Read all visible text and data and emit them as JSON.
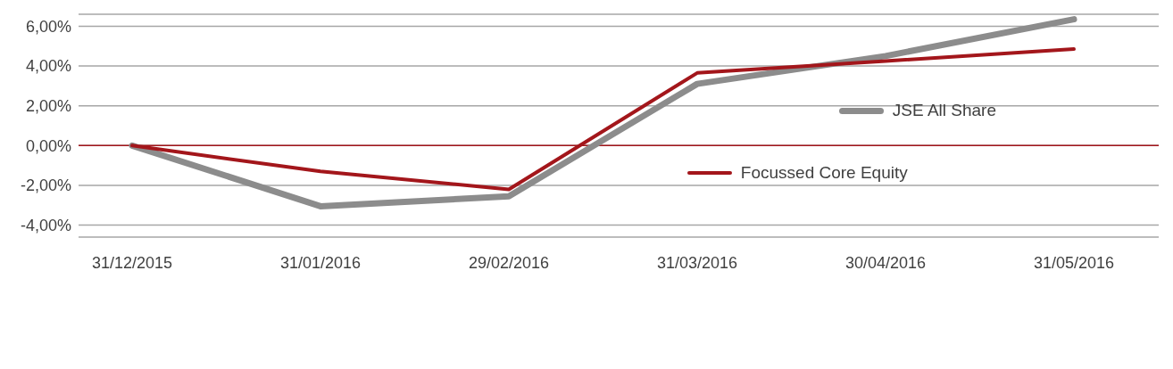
{
  "chart_data": {
    "type": "line",
    "categories": [
      "31/12/2015",
      "31/01/2016",
      "29/02/2016",
      "31/03/2016",
      "30/04/2016",
      "31/05/2016"
    ],
    "series": [
      {
        "name": "JSE All Share",
        "color": "#8c8c8c",
        "values": [
          0,
          -3.05,
          -2.55,
          3.1,
          4.5,
          6.35
        ]
      },
      {
        "name": "Focussed Core Equity",
        "color": "#a3161b",
        "values": [
          0,
          -1.3,
          -2.2,
          3.65,
          4.25,
          4.85
        ]
      }
    ],
    "ylim": [
      -4.6,
      6.6
    ],
    "yticks": [
      {
        "value": -4,
        "label": "-4,00%"
      },
      {
        "value": -2,
        "label": "-2,00%"
      },
      {
        "value": 0,
        "label": "0,00%"
      },
      {
        "value": 2,
        "label": "2,00%"
      },
      {
        "value": 4,
        "label": "4,00%"
      },
      {
        "value": 6,
        "label": "6,00%"
      }
    ],
    "grid": "y",
    "ref_lines": [
      {
        "axis": "y",
        "value": 0,
        "color": "#a3161b"
      }
    ],
    "legend": "right",
    "marker": "none",
    "line_style": "solid"
  }
}
